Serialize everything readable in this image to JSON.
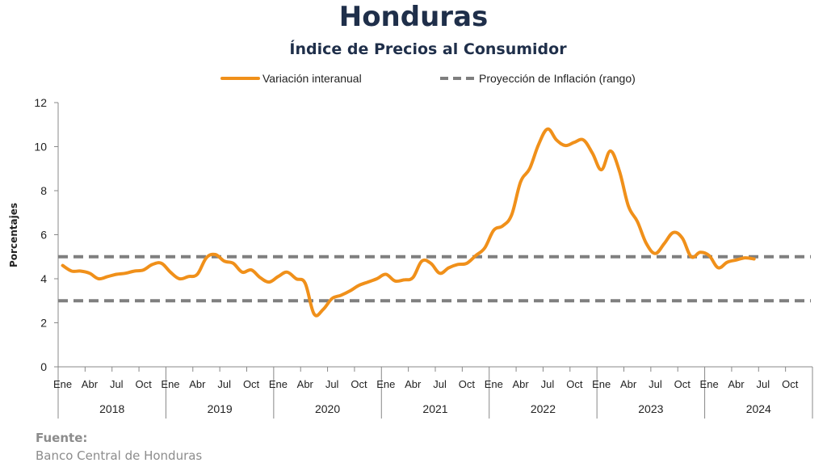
{
  "header": {
    "title": "Honduras",
    "subtitle": "Índice de Precios al Consumidor"
  },
  "source": {
    "label": "Fuente:",
    "text": "Banco Central de Honduras"
  },
  "colors": {
    "series": "#f0901a",
    "band": "#7f7f7f",
    "text": "#1f2f4a",
    "axis": "#888888"
  },
  "chart_data": {
    "type": "line",
    "ylabel": "Porcentajes",
    "ylim": [
      0,
      12
    ],
    "yticks": [
      0,
      2,
      4,
      6,
      8,
      10,
      12
    ],
    "grid": false,
    "legend_position": "top",
    "x_start": "2018-01",
    "month_tick_labels": [
      "Ene",
      "Abr",
      "Jul",
      "Oct"
    ],
    "years": [
      "2018",
      "2019",
      "2020",
      "2021",
      "2022",
      "2023",
      "2024"
    ],
    "series": [
      {
        "name": "Variación interanual",
        "style": "solid",
        "values": [
          4.6,
          4.35,
          4.35,
          4.25,
          4.0,
          4.1,
          4.2,
          4.25,
          4.35,
          4.4,
          4.65,
          4.7,
          4.3,
          4.0,
          4.1,
          4.2,
          4.95,
          5.1,
          4.8,
          4.7,
          4.3,
          4.4,
          4.05,
          3.85,
          4.1,
          4.3,
          4.0,
          3.8,
          2.4,
          2.6,
          3.1,
          3.25,
          3.45,
          3.7,
          3.85,
          4.0,
          4.2,
          3.9,
          3.95,
          4.05,
          4.8,
          4.7,
          4.25,
          4.5,
          4.65,
          4.7,
          5.05,
          5.4,
          6.2,
          6.4,
          6.9,
          8.4,
          9.0,
          10.1,
          10.8,
          10.3,
          10.05,
          10.2,
          10.3,
          9.7,
          8.95,
          9.8,
          8.9,
          7.3,
          6.6,
          5.6,
          5.15,
          5.6,
          6.1,
          5.85,
          5.0,
          5.2,
          5.05,
          4.5,
          4.75,
          4.85,
          4.95,
          4.9
        ]
      },
      {
        "name": "Proyección de Inflación (rango)",
        "style": "dashed",
        "band": [
          3,
          5
        ]
      }
    ]
  }
}
